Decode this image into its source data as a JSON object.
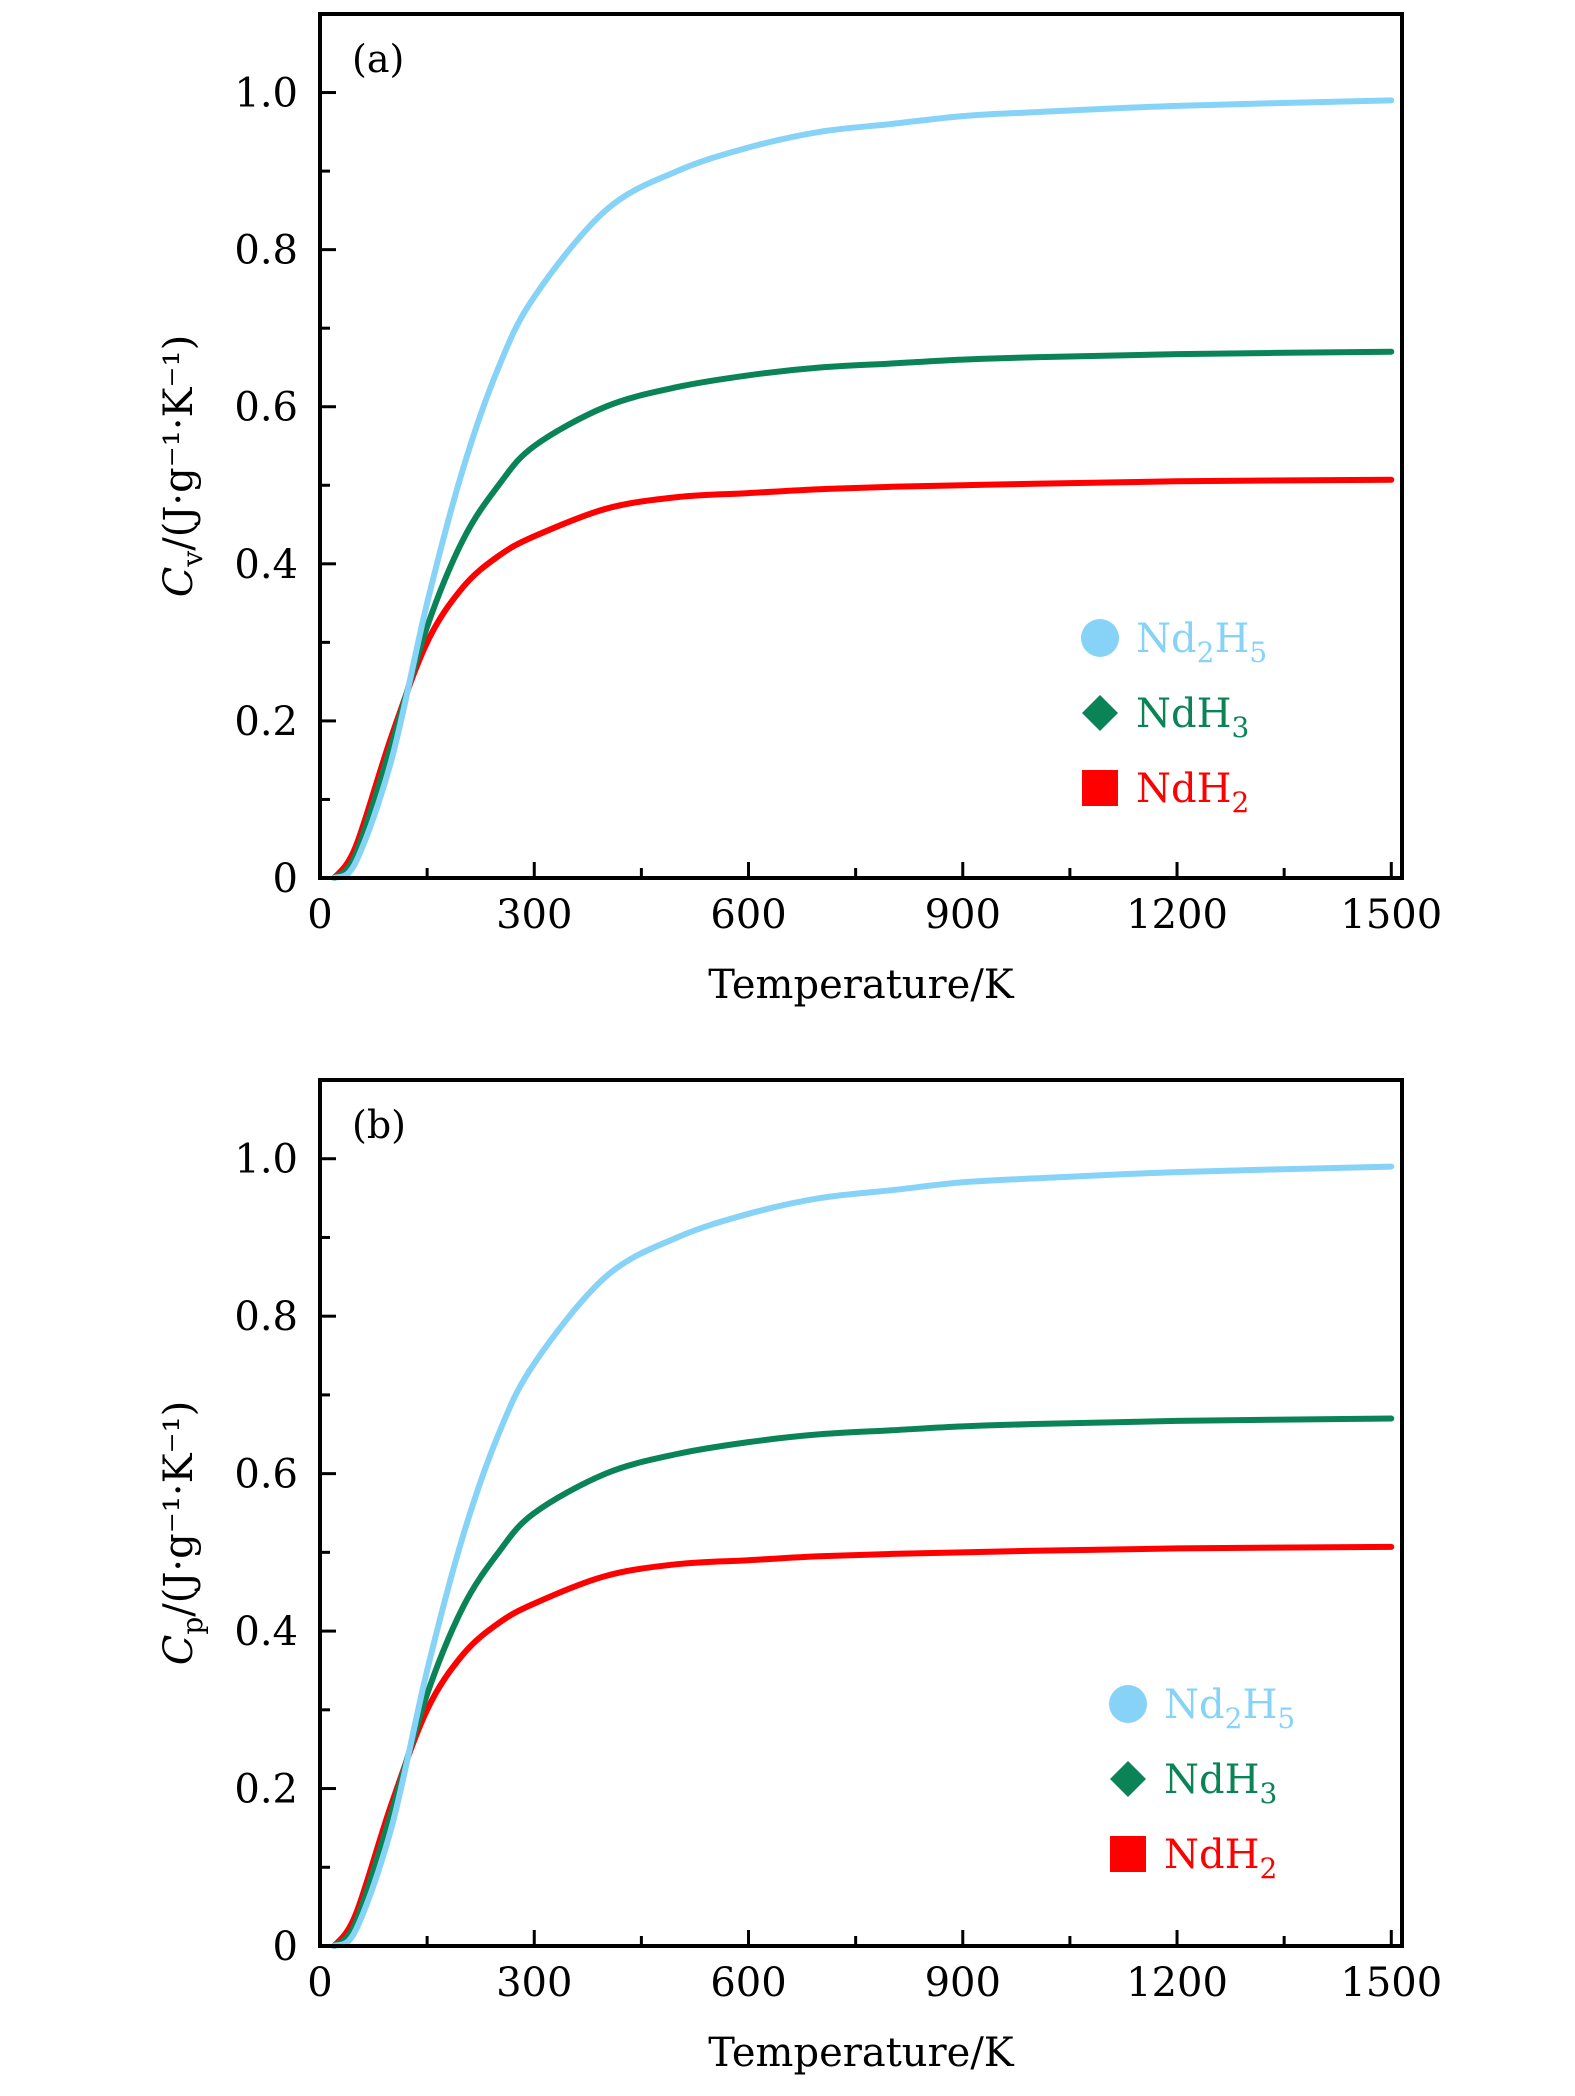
{
  "chart_data": [
    {
      "type": "line",
      "panel_label": "(a)",
      "title": "",
      "xlabel": "Temperature/K",
      "ylabel": {
        "symbol": "C",
        "subscript": "v",
        "unit": "/(J·g⁻¹·K⁻¹)"
      },
      "xlim": [
        0,
        1515
      ],
      "ylim": [
        0,
        1.1
      ],
      "xticks": [
        0,
        300,
        600,
        900,
        1200,
        1500
      ],
      "xtick_labels": [
        "0",
        "300",
        "600",
        "900",
        "1200",
        "1500"
      ],
      "xminor": [
        150,
        450,
        750,
        1050,
        1350
      ],
      "yticks": [
        0,
        0.2,
        0.4,
        0.6,
        0.8,
        1.0
      ],
      "ytick_labels": [
        "0",
        "0.2",
        "0.4",
        "0.6",
        "0.8",
        "1.0"
      ],
      "yminor": [
        0.1,
        0.3,
        0.5,
        0.7,
        0.9
      ],
      "grid": false,
      "legend_placement": "lower-right",
      "x": [
        20,
        50,
        100,
        150,
        200,
        250,
        300,
        400,
        500,
        600,
        700,
        800,
        900,
        1000,
        1200,
        1500
      ],
      "series": [
        {
          "name": "Nd2H5",
          "label_main": "Nd",
          "sub1": "2",
          "label_mid": "H",
          "sub2": "5",
          "color": "#87d3f8",
          "marker": "circle",
          "values": [
            0,
            0.02,
            0.15,
            0.35,
            0.52,
            0.65,
            0.74,
            0.85,
            0.9,
            0.93,
            0.95,
            0.96,
            0.97,
            0.975,
            0.983,
            0.99
          ]
        },
        {
          "name": "NdH3",
          "label_main": "Nd",
          "sub1": "",
          "label_mid": "H",
          "sub2": "3",
          "color": "#0a8457",
          "marker": "diamond",
          "values": [
            0,
            0.03,
            0.17,
            0.32,
            0.43,
            0.5,
            0.55,
            0.6,
            0.625,
            0.64,
            0.65,
            0.655,
            0.66,
            0.663,
            0.667,
            0.67
          ]
        },
        {
          "name": "NdH2",
          "label_main": "Nd",
          "sub1": "",
          "label_mid": "H",
          "sub2": "2",
          "color": "#ff0000",
          "marker": "square",
          "values": [
            0,
            0.04,
            0.18,
            0.3,
            0.37,
            0.41,
            0.435,
            0.47,
            0.485,
            0.49,
            0.495,
            0.498,
            0.5,
            0.502,
            0.505,
            0.507
          ]
        }
      ]
    },
    {
      "type": "line",
      "panel_label": "(b)",
      "title": "",
      "xlabel": "Temperature/K",
      "ylabel": {
        "symbol": "C",
        "subscript": "p",
        "unit": "/(J·g⁻¹·K⁻¹)"
      },
      "xlim": [
        0,
        1515
      ],
      "ylim": [
        0,
        1.1
      ],
      "xticks": [
        0,
        300,
        600,
        900,
        1200,
        1500
      ],
      "xtick_labels": [
        "0",
        "300",
        "600",
        "900",
        "1200",
        "1500"
      ],
      "xminor": [
        150,
        450,
        750,
        1050,
        1350
      ],
      "yticks": [
        0,
        0.2,
        0.4,
        0.6,
        0.8,
        1.0
      ],
      "ytick_labels": [
        "0",
        "0.2",
        "0.4",
        "0.6",
        "0.8",
        "1.0"
      ],
      "yminor": [
        0.1,
        0.3,
        0.5,
        0.7,
        0.9
      ],
      "grid": false,
      "legend_placement": "lower-right",
      "x": [
        20,
        50,
        100,
        150,
        200,
        250,
        300,
        400,
        500,
        600,
        700,
        800,
        900,
        1000,
        1200,
        1500
      ],
      "series": [
        {
          "name": "Nd2H5",
          "label_main": "Nd",
          "sub1": "2",
          "label_mid": "H",
          "sub2": "5",
          "color": "#87d3f8",
          "marker": "circle",
          "values": [
            0,
            0.02,
            0.15,
            0.35,
            0.52,
            0.65,
            0.74,
            0.85,
            0.9,
            0.93,
            0.95,
            0.96,
            0.97,
            0.975,
            0.983,
            0.99
          ]
        },
        {
          "name": "NdH3",
          "label_main": "Nd",
          "sub1": "",
          "label_mid": "H",
          "sub2": "3",
          "color": "#0a8457",
          "marker": "diamond",
          "values": [
            0,
            0.03,
            0.17,
            0.32,
            0.43,
            0.5,
            0.55,
            0.6,
            0.625,
            0.64,
            0.65,
            0.655,
            0.66,
            0.663,
            0.667,
            0.67
          ]
        },
        {
          "name": "NdH2",
          "label_main": "Nd",
          "sub1": "",
          "label_mid": "H",
          "sub2": "2",
          "color": "#ff0000",
          "marker": "square",
          "values": [
            0,
            0.04,
            0.18,
            0.3,
            0.37,
            0.41,
            0.435,
            0.47,
            0.485,
            0.49,
            0.495,
            0.498,
            0.5,
            0.502,
            0.505,
            0.507
          ]
        }
      ]
    }
  ]
}
